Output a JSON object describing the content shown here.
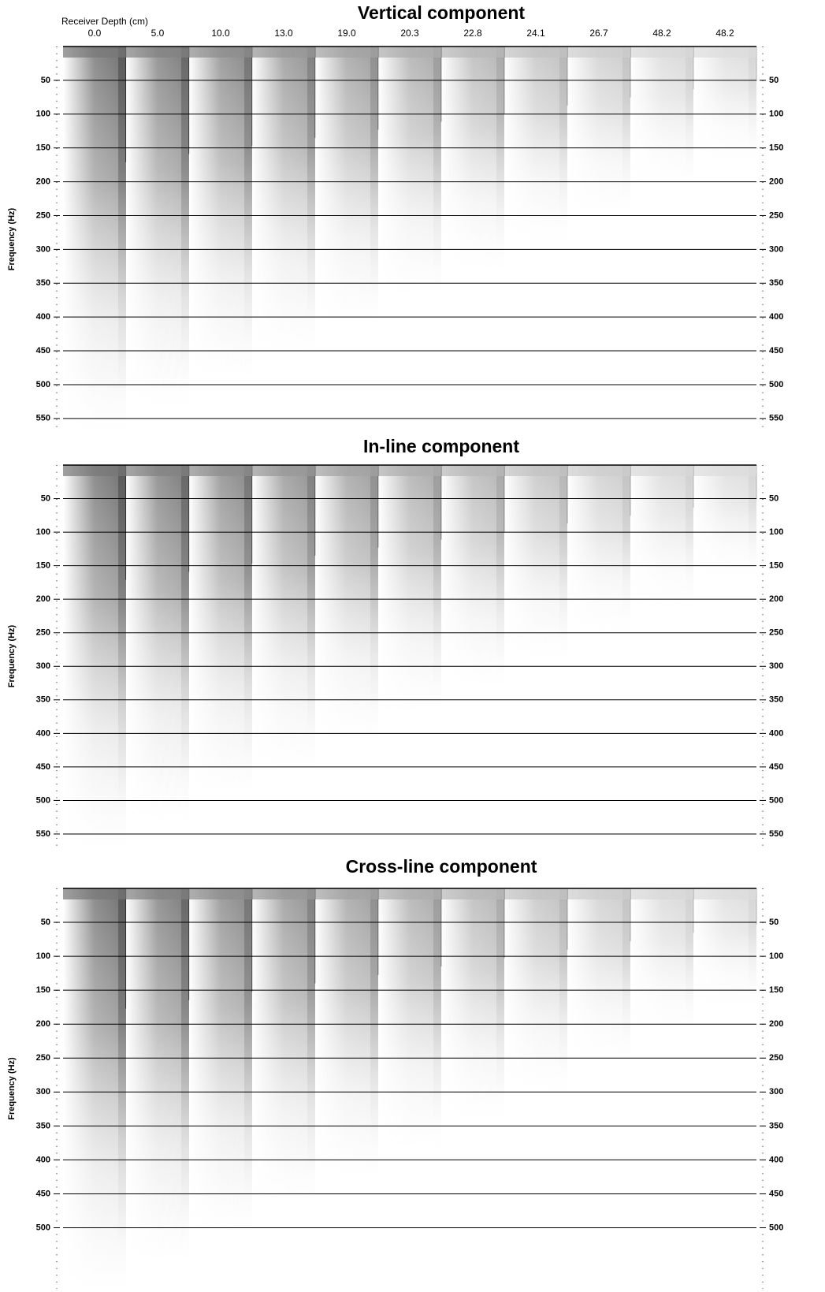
{
  "chart_data": [
    {
      "type": "spectrogram",
      "title": "Vertical component",
      "x_label": "Receiver Depth (cm)",
      "categories": [
        "0.0",
        "5.0",
        "10.0",
        "13.0",
        "19.0",
        "20.3",
        "22.8",
        "24.1",
        "26.7",
        "48.2",
        "48.2"
      ],
      "y_label": "Frequency (Hz)",
      "ylim": [
        0,
        570
      ],
      "yticks": [
        50,
        100,
        150,
        200,
        250,
        300,
        350,
        400,
        450,
        500,
        550
      ],
      "grid": true
    },
    {
      "type": "spectrogram",
      "title": "In-line component",
      "y_label": "Frequency (Hz)",
      "ylim": [
        0,
        570
      ],
      "yticks": [
        50,
        100,
        150,
        200,
        250,
        300,
        350,
        400,
        450,
        500,
        550
      ],
      "grid": true
    },
    {
      "type": "spectrogram",
      "title": "Cross-line component",
      "y_label": "Frequency (Hz)",
      "ylim": [
        0,
        590
      ],
      "yticks": [
        50,
        100,
        150,
        200,
        250,
        300,
        350,
        400,
        450,
        500
      ],
      "grid": true
    }
  ]
}
